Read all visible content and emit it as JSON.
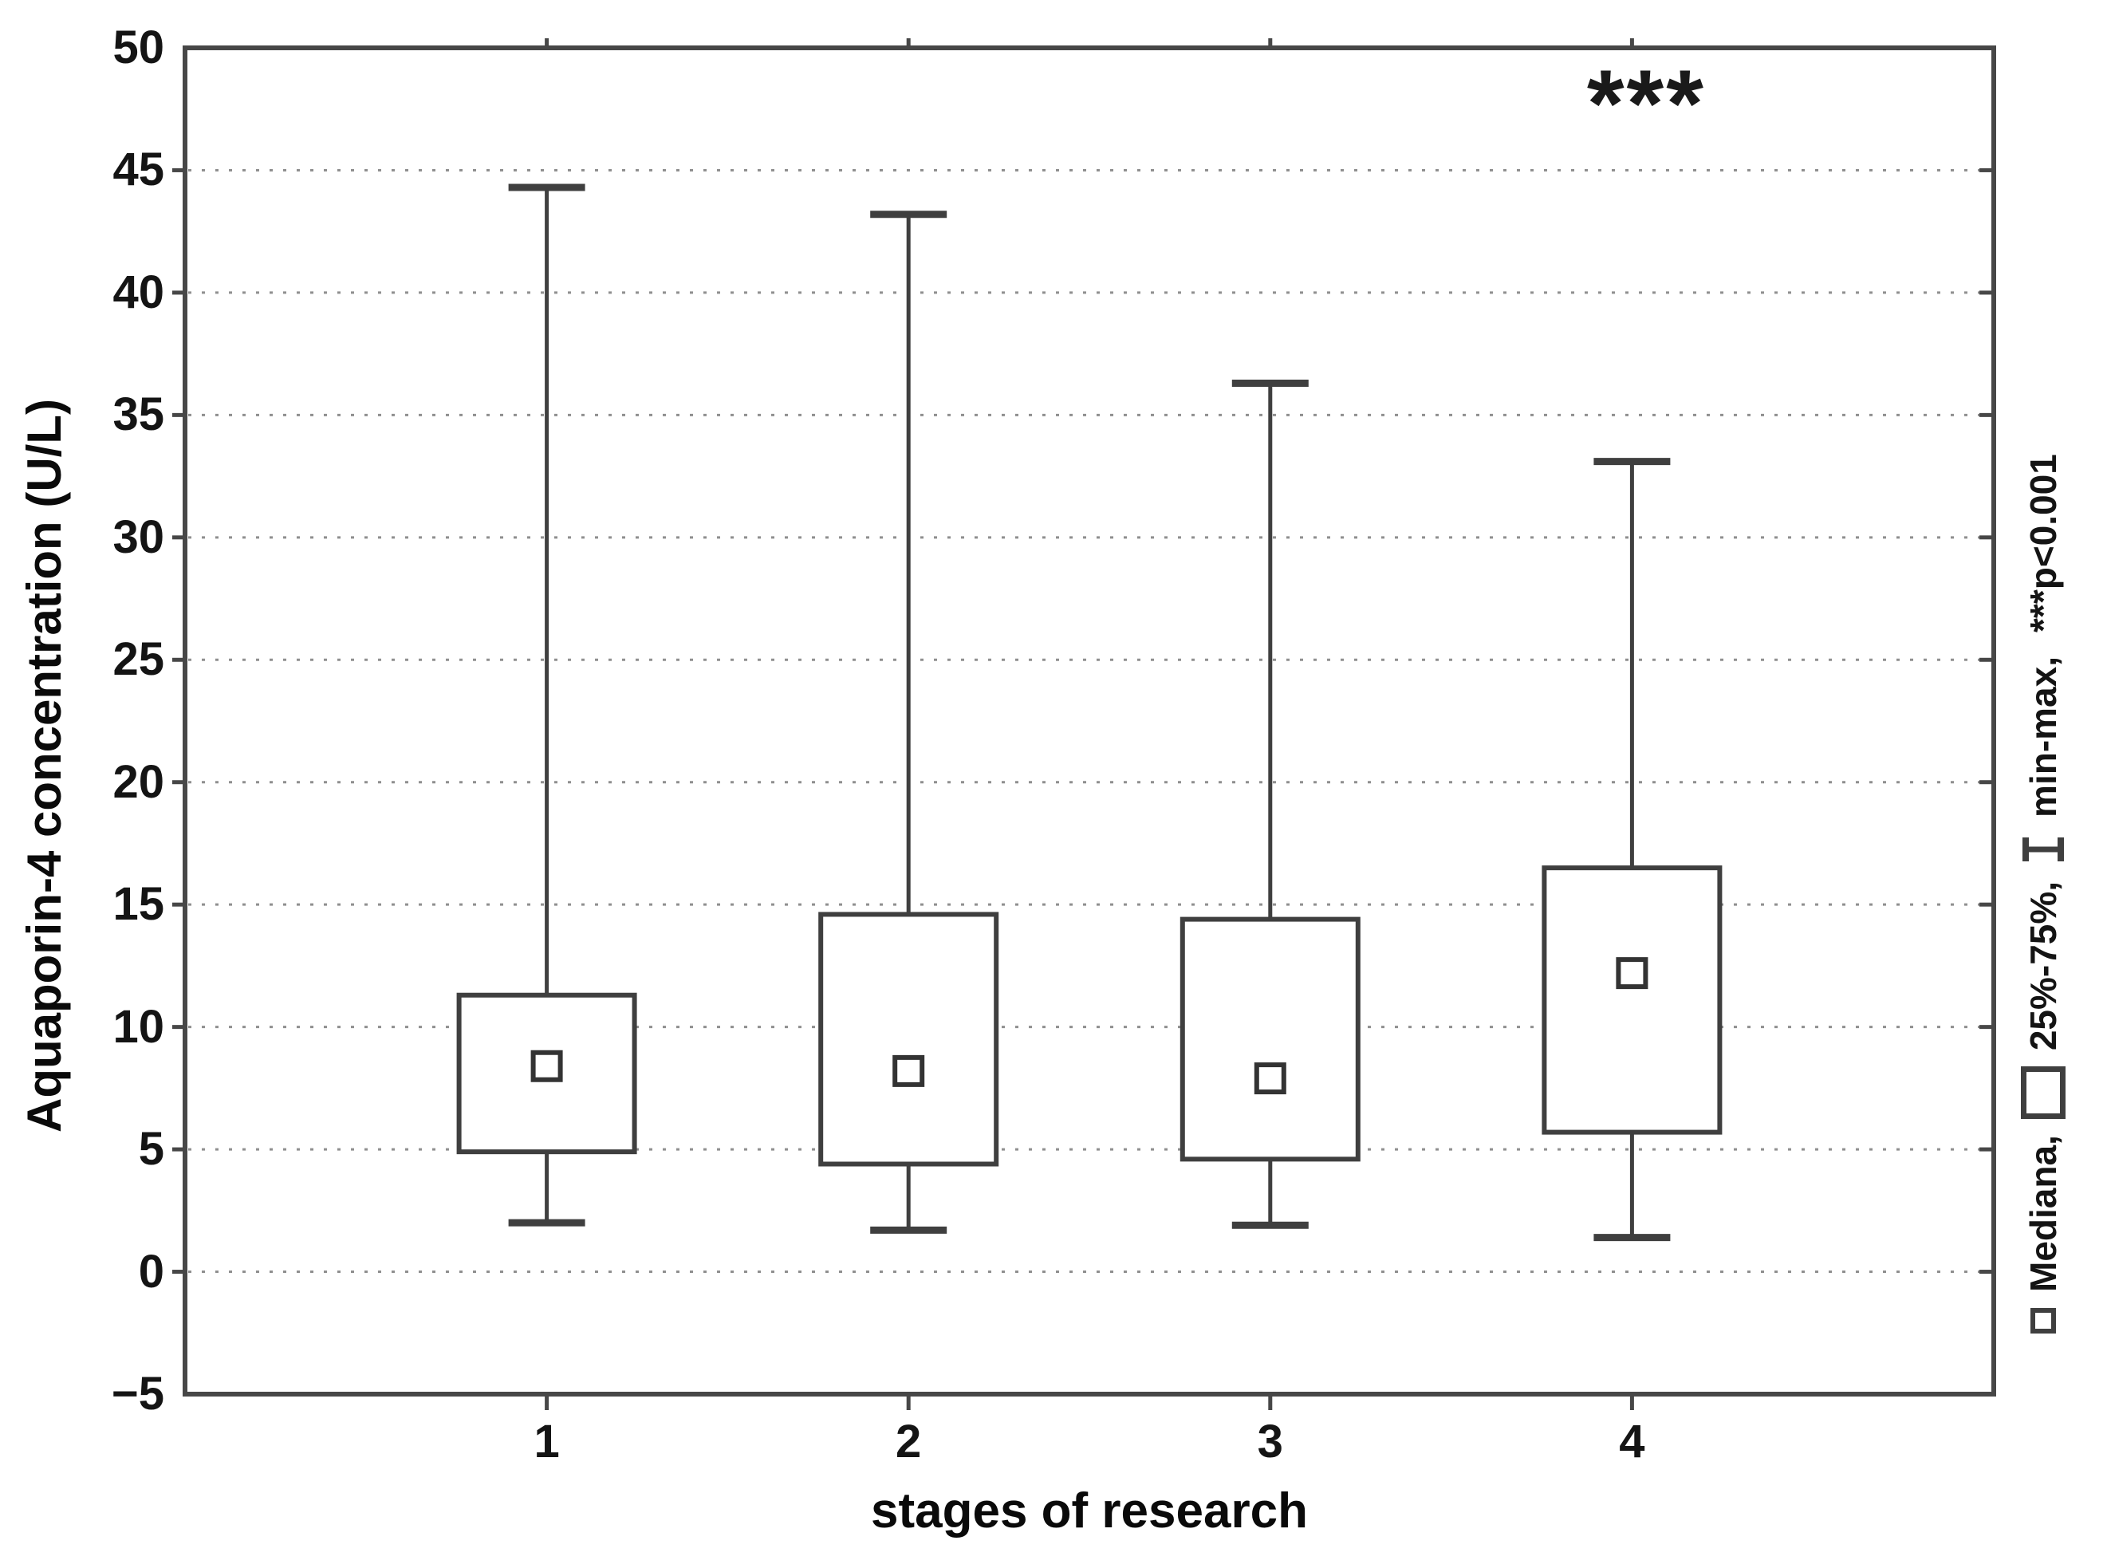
{
  "chart_data": {
    "type": "box",
    "title": "",
    "xlabel": "stages of research",
    "ylabel": "Aquaporin-4 concentration (U/L)",
    "ylim": [
      -5,
      50
    ],
    "y_ticks": [
      50,
      45,
      40,
      35,
      30,
      25,
      20,
      15,
      10,
      5,
      0,
      -5
    ],
    "y_gridlines": [
      45,
      40,
      35,
      30,
      25,
      20,
      15,
      10,
      5,
      0
    ],
    "grid": "horizontal-dotted",
    "legend_position": "right-vertical-rotated",
    "categories": [
      "1",
      "2",
      "3",
      "4"
    ],
    "series": [
      {
        "category": "1",
        "min": 2.0,
        "q1": 4.9,
        "median": 8.4,
        "q3": 11.3,
        "max": 44.3
      },
      {
        "category": "2",
        "min": 1.7,
        "q1": 4.4,
        "median": 8.2,
        "q3": 14.6,
        "max": 43.2
      },
      {
        "category": "3",
        "min": 1.9,
        "q1": 4.6,
        "median": 7.9,
        "q3": 14.4,
        "max": 36.3
      },
      {
        "category": "4",
        "min": 1.4,
        "q1": 5.7,
        "median": 12.2,
        "q3": 16.5,
        "max": 33.1
      }
    ],
    "annotation": {
      "text": "***",
      "category_index": 3
    },
    "legend_items": [
      {
        "icon": "median-square-icon",
        "label": "Mediana,"
      },
      {
        "icon": "iqr-box-icon",
        "label": "25%-75%,"
      },
      {
        "icon": "minmax-whisker-icon",
        "label": "min-max,"
      },
      {
        "icon": "",
        "label": "***p<0.001"
      }
    ]
  }
}
